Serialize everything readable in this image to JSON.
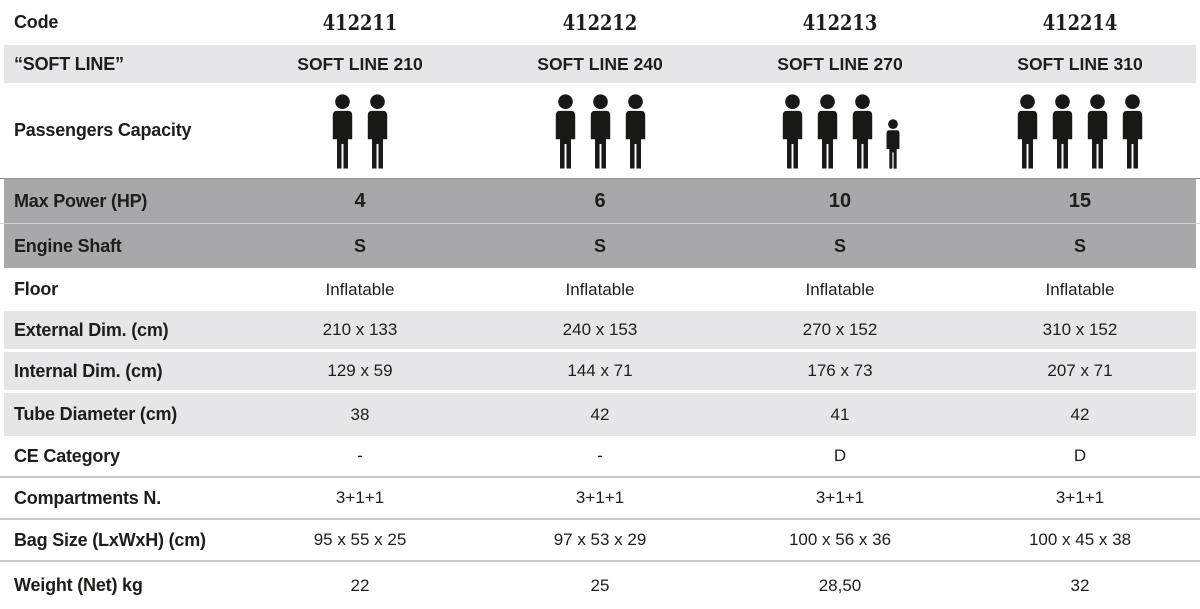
{
  "table": {
    "rows": [
      {
        "label": "Code",
        "values": [
          "412211",
          "412212",
          "412213",
          "412214"
        ]
      },
      {
        "label": "“SOFT LINE”",
        "values": [
          "SOFT LINE 210",
          "SOFT LINE 240",
          "SOFT LINE 270",
          "SOFT LINE 310"
        ]
      },
      {
        "label": "Passengers Capacity",
        "passengers": [
          {
            "adults": 2,
            "children": 0
          },
          {
            "adults": 3,
            "children": 0
          },
          {
            "adults": 3,
            "children": 1
          },
          {
            "adults": 4,
            "children": 0
          }
        ]
      },
      {
        "label": "Max Power (HP)",
        "values": [
          "4",
          "6",
          "10",
          "15"
        ]
      },
      {
        "label": "Engine Shaft",
        "values": [
          "S",
          "S",
          "S",
          "S"
        ]
      },
      {
        "label": "Floor",
        "values": [
          "Inflatable",
          "Inflatable",
          "Inflatable",
          "Inflatable"
        ]
      },
      {
        "label": "External Dim. (cm)",
        "values": [
          "210 x 133",
          "240 x 153",
          "270 x 152",
          "310 x 152"
        ]
      },
      {
        "label": "Internal Dim. (cm)",
        "values": [
          "129 x 59",
          "144 x 71",
          "176 x 73",
          "207 x 71"
        ]
      },
      {
        "label": "Tube Diameter (cm)",
        "values": [
          "38",
          "42",
          "41",
          "42"
        ]
      },
      {
        "label": "CE Category",
        "values": [
          "-",
          "-",
          "D",
          "D"
        ]
      },
      {
        "label": "Compartments N.",
        "values": [
          "3+1+1",
          "3+1+1",
          "3+1+1",
          "3+1+1"
        ]
      },
      {
        "label": "Bag Size (LxWxH) (cm)",
        "values": [
          "95 x 55 x 25",
          "97 x 53 x 29",
          "100 x 56 x 36",
          "100 x 45 x 38"
        ]
      },
      {
        "label": "Weight (Net) kg",
        "values": [
          "22",
          "25",
          "28,50",
          "32"
        ]
      }
    ]
  },
  "colors": {
    "row_light_gray": "#e6e6e8",
    "row_medium_gray": "#a8a8aa",
    "divider_line": "#c9c9cb",
    "text": "#1d1d1b",
    "icon_black": "#181817"
  }
}
